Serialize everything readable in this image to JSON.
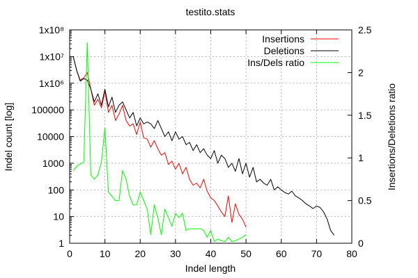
{
  "chart_data": {
    "type": "line",
    "title": "testito.stats",
    "xlabel": "Indel length",
    "ylabel": "Indel count [log]",
    "y2label": "Insertions/Deletions ratio",
    "xlim": [
      0,
      80
    ],
    "ylim": [
      1,
      100000000
    ],
    "yscale": "log",
    "y2lim": [
      0,
      2.5
    ],
    "grid": true,
    "legend_position": "top-right",
    "x_ticks": [
      "0",
      "10",
      "20",
      "30",
      "40",
      "50",
      "60",
      "70",
      "80"
    ],
    "y_ticks": [
      "1",
      "10",
      "100",
      "1000",
      "10000",
      "100000",
      "1x10⁶",
      "1x10⁷",
      "1x10⁸"
    ],
    "y2_ticks": [
      "0",
      "0.5",
      "1",
      "1.5",
      "2",
      "2.5"
    ],
    "series": [
      {
        "name": "Insertions",
        "axis": "left",
        "color": "#ff0000",
        "x": [
          1,
          2,
          3,
          4,
          5,
          6,
          7,
          8,
          9,
          10,
          11,
          12,
          13,
          14,
          15,
          16,
          17,
          18,
          19,
          20,
          21,
          22,
          23,
          24,
          25,
          26,
          27,
          28,
          29,
          30,
          31,
          32,
          33,
          34,
          35,
          36,
          37,
          38,
          39,
          40,
          41,
          42,
          43,
          44,
          45,
          46,
          47,
          48,
          49,
          50
        ],
        "y": [
          10000000,
          3000000,
          1300000,
          1600000,
          2500000,
          600000,
          150000,
          250000,
          120000,
          500000,
          80000,
          150000,
          40000,
          70000,
          150000,
          40000,
          25000,
          30000,
          12000,
          35000,
          9000,
          8000,
          4000,
          7000,
          3500,
          2000,
          2500,
          900,
          1200,
          600,
          1000,
          400,
          700,
          250,
          150,
          180,
          120,
          250,
          90,
          50,
          40,
          25,
          15,
          10,
          60,
          6,
          30,
          12,
          8,
          4
        ]
      },
      {
        "name": "Deletions",
        "axis": "left",
        "color": "#000000",
        "x": [
          1,
          2,
          3,
          4,
          5,
          6,
          7,
          8,
          9,
          10,
          11,
          12,
          13,
          14,
          15,
          16,
          17,
          18,
          19,
          20,
          21,
          22,
          23,
          24,
          25,
          26,
          27,
          28,
          29,
          30,
          31,
          32,
          33,
          34,
          35,
          36,
          37,
          38,
          39,
          40,
          41,
          42,
          43,
          44,
          45,
          46,
          47,
          48,
          49,
          50,
          51,
          52,
          53,
          54,
          55,
          56,
          57,
          58,
          59,
          60,
          61,
          62,
          63,
          64,
          65,
          66,
          67,
          68,
          69,
          70,
          71,
          72,
          73,
          74,
          75
        ],
        "y": [
          10000000,
          3000000,
          1200000,
          1500000,
          1300000,
          600000,
          200000,
          400000,
          150000,
          600000,
          130000,
          300000,
          80000,
          150000,
          200000,
          100000,
          50000,
          80000,
          25000,
          50000,
          30000,
          35000,
          30000,
          20000,
          40000,
          20000,
          10000,
          15000,
          7000,
          15000,
          8000,
          10000,
          5000,
          6000,
          3000,
          5000,
          2500,
          3500,
          2000,
          1500,
          3000,
          1000,
          2000,
          1500,
          700,
          1000,
          500,
          1500,
          400,
          1000,
          300,
          700,
          200,
          250,
          180,
          150,
          250,
          100,
          130,
          100,
          80,
          70,
          90,
          60,
          50,
          40,
          30,
          25,
          20,
          25,
          22,
          15,
          8,
          3,
          2
        ]
      },
      {
        "name": "Ins/Dels ratio",
        "axis": "right",
        "color": "#00ff00",
        "x": [
          1,
          2,
          3,
          4,
          5,
          6,
          7,
          8,
          9,
          10,
          11,
          12,
          13,
          14,
          15,
          16,
          17,
          18,
          19,
          20,
          21,
          22,
          23,
          24,
          25,
          26,
          27,
          28,
          29,
          30,
          31,
          32,
          33,
          34,
          35,
          36,
          37,
          38,
          39,
          40,
          41,
          42,
          43,
          44,
          45,
          46,
          47,
          48,
          49,
          50
        ],
        "y": [
          0.85,
          0.9,
          0.93,
          0.95,
          2.35,
          0.8,
          0.75,
          0.8,
          0.95,
          1.35,
          0.6,
          0.55,
          0.5,
          0.5,
          0.85,
          0.75,
          0.55,
          0.45,
          0.45,
          0.6,
          0.5,
          0.4,
          0.1,
          0.45,
          0.3,
          0.1,
          0.4,
          0.3,
          0.2,
          0.35,
          0.3,
          0.35,
          0.15,
          0.17,
          0.17,
          0.17,
          0.17,
          0.15,
          0.07,
          0.15,
          0.02,
          0.05,
          0.03,
          0.02,
          0.07,
          0.02,
          0.03,
          0.05,
          0.07,
          0.1
        ]
      }
    ]
  }
}
